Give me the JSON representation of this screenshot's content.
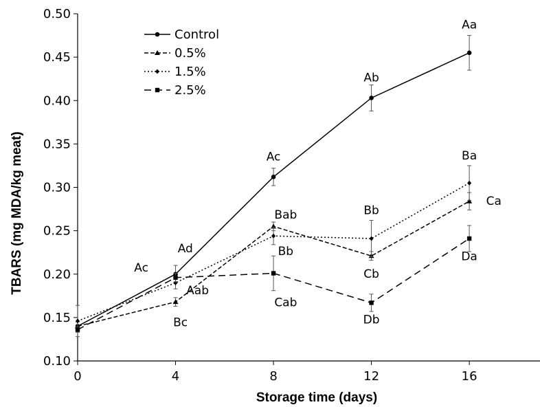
{
  "chart_data": {
    "type": "line",
    "xlabel": "Storage time (days)",
    "ylabel": "TBARS (mg MDA/kg meat)",
    "xlim": [
      0,
      19
    ],
    "ylim": [
      0.1,
      0.5
    ],
    "x_ticks": [
      "0",
      "4",
      "8",
      "12",
      "16"
    ],
    "y_ticks": [
      "0.10",
      "0.15",
      "0.20",
      "0.25",
      "0.30",
      "0.35",
      "0.40",
      "0.45",
      "0.50"
    ],
    "x": [
      0,
      4,
      8,
      12,
      16
    ],
    "grid": false,
    "legend_position": "top-left",
    "series": [
      {
        "name": "Control",
        "marker": "circle",
        "line": "solid",
        "values": [
          0.14,
          0.2,
          0.312,
          0.403,
          0.455
        ],
        "errors": [
          0.005,
          0.01,
          0.01,
          0.015,
          0.02
        ]
      },
      {
        "name": "0.5%",
        "marker": "triangle",
        "line": "dashed",
        "values": [
          0.14,
          0.168,
          0.255,
          0.221,
          0.284
        ],
        "errors": [
          0.005,
          0.005,
          0.005,
          0.005,
          0.01
        ]
      },
      {
        "name": "1.5%",
        "marker": "diamond",
        "line": "dotted",
        "values": [
          0.146,
          0.19,
          0.244,
          0.241,
          0.305
        ],
        "errors": [
          0.018,
          0.007,
          0.01,
          0.021,
          0.02
        ]
      },
      {
        "name": "2.5%",
        "marker": "square",
        "line": "long-dashed",
        "values": [
          0.136,
          0.196,
          0.201,
          0.167,
          0.241
        ],
        "errors": [
          0.003,
          0.005,
          0.02,
          0.01,
          0.015
        ]
      }
    ],
    "annotations": [
      {
        "text": "Ac",
        "x": 2.6,
        "y": 0.203
      },
      {
        "text": "Ad",
        "x": 4.4,
        "y": 0.225
      },
      {
        "text": "Aab",
        "x": 4.9,
        "y": 0.177
      },
      {
        "text": "Bc",
        "x": 4.2,
        "y": 0.14
      },
      {
        "text": "Ac",
        "x": 8.0,
        "y": 0.331
      },
      {
        "text": "Bab",
        "x": 8.5,
        "y": 0.264
      },
      {
        "text": "Bb",
        "x": 8.5,
        "y": 0.222
      },
      {
        "text": "Cab",
        "x": 8.5,
        "y": 0.163
      },
      {
        "text": "Ab",
        "x": 12.0,
        "y": 0.422
      },
      {
        "text": "Bb",
        "x": 12.0,
        "y": 0.269
      },
      {
        "text": "Cb",
        "x": 12.0,
        "y": 0.196
      },
      {
        "text": "Db",
        "x": 12.0,
        "y": 0.143
      },
      {
        "text": "Aa",
        "x": 16.0,
        "y": 0.483
      },
      {
        "text": "Ba",
        "x": 16.0,
        "y": 0.332
      },
      {
        "text": "Ca",
        "x": 17.0,
        "y": 0.28
      },
      {
        "text": "Da",
        "x": 16.0,
        "y": 0.216
      }
    ]
  }
}
